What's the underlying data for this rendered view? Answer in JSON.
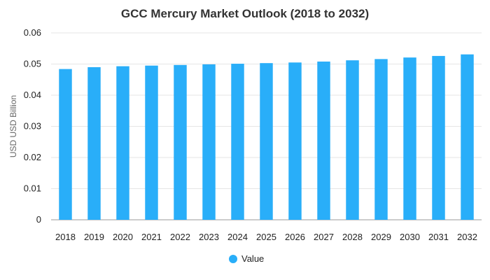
{
  "chart_data": {
    "type": "bar",
    "title": "GCC Mercury Market Outlook (2018 to 2032)",
    "xlabel": "",
    "ylabel": "USD USD Billion",
    "ylim": [
      0,
      0.06
    ],
    "yticks": [
      "0",
      "0.01",
      "0.02",
      "0.03",
      "0.04",
      "0.05",
      "0.06"
    ],
    "categories": [
      "2018",
      "2019",
      "2020",
      "2021",
      "2022",
      "2023",
      "2024",
      "2025",
      "2026",
      "2027",
      "2028",
      "2029",
      "2030",
      "2031",
      "2032"
    ],
    "series": [
      {
        "name": "Value",
        "values": [
          0.0484,
          0.049,
          0.0493,
          0.0495,
          0.0497,
          0.0499,
          0.0501,
          0.0503,
          0.0505,
          0.0508,
          0.0512,
          0.0516,
          0.0521,
          0.0526,
          0.0531
        ],
        "color": "#29aef9"
      }
    ],
    "grid": true,
    "legend": "bottom-center",
    "gridColor": "#e6e6e6",
    "axisColor": "#999999"
  }
}
